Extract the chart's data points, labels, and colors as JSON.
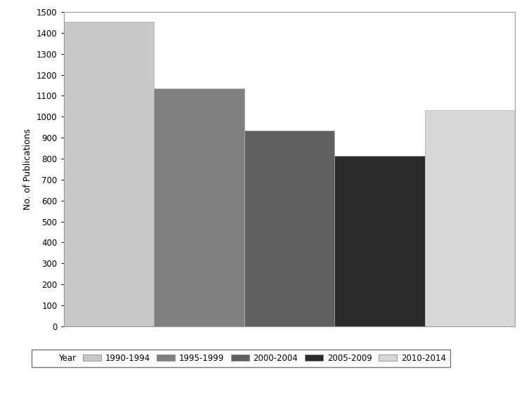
{
  "categories": [
    "1990-1994",
    "1995-1999",
    "2000-2004",
    "2005-2009",
    "2010-2014"
  ],
  "values": [
    1452,
    1135,
    935,
    812,
    1030
  ],
  "bar_colors": [
    "#c8c8c8",
    "#808080",
    "#606060",
    "#2a2a2a",
    "#d8d8d8"
  ],
  "ylabel": "No. of Publications",
  "ylim": [
    0,
    1500
  ],
  "yticks": [
    0,
    100,
    200,
    300,
    400,
    500,
    600,
    700,
    800,
    900,
    1000,
    1100,
    1200,
    1300,
    1400,
    1500
  ],
  "legend_label": "Year",
  "background_color": "#ffffff",
  "bar_edge_color": "#aaaaaa",
  "title": ""
}
